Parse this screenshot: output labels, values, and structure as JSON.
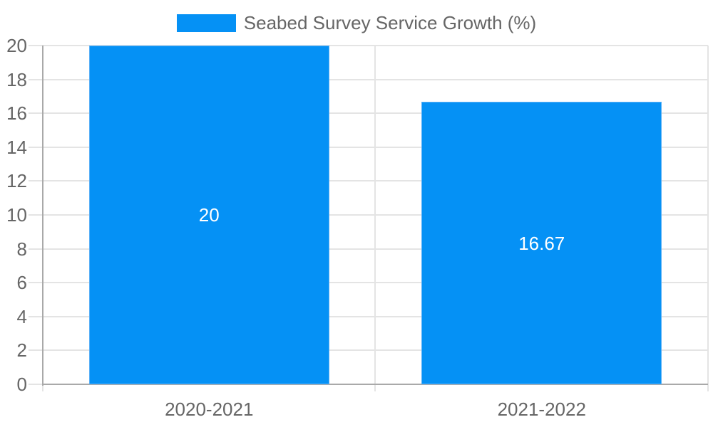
{
  "chart_data": {
    "type": "bar",
    "title": "Seabed Survey Service Growth (%)",
    "categories": [
      "2020-2021",
      "2021-2022"
    ],
    "values": [
      20,
      16.67
    ],
    "value_labels": [
      "20",
      "16.67"
    ],
    "xlabel": "",
    "ylabel": "",
    "ylim": [
      0,
      20
    ],
    "ytick_step": 2,
    "yticks": [
      0,
      2,
      4,
      6,
      8,
      10,
      12,
      14,
      16,
      18,
      20
    ],
    "grid": true,
    "legend_position": "top-center",
    "colors": {
      "bar": "#0591F5",
      "bar_border": "#5bb1f7",
      "grid": "#e4e4e4",
      "axis": "#a9a9a9",
      "tick_text": "#666666",
      "legend_text": "#666666",
      "value_text": "#ffffff",
      "background": "#ffffff"
    }
  }
}
